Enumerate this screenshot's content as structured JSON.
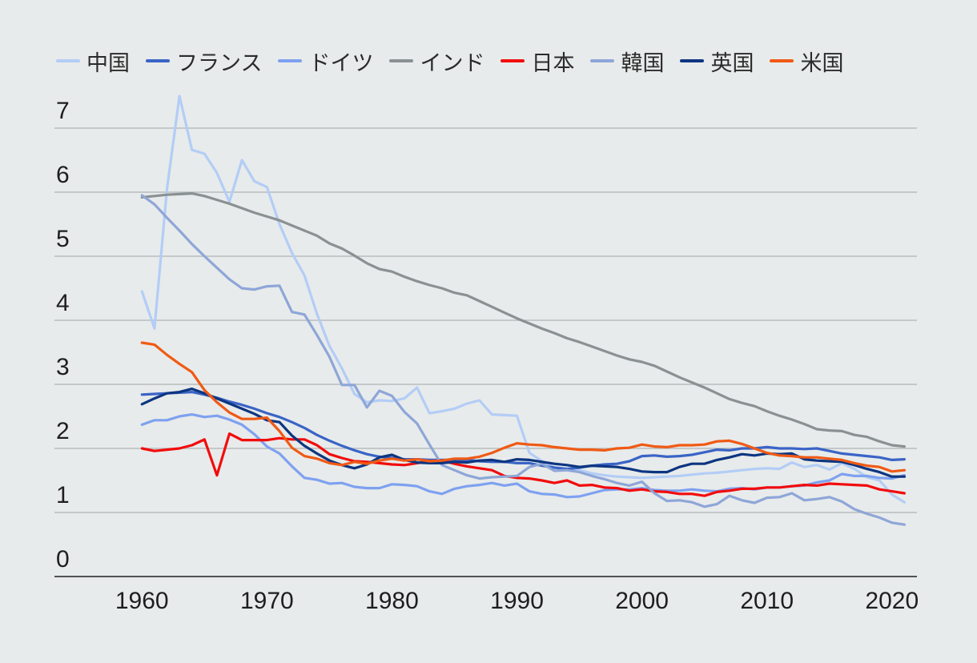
{
  "chart_data": {
    "type": "line",
    "title": "",
    "xlabel": "",
    "ylabel": "",
    "xlim": [
      1953,
      2022
    ],
    "ylim": [
      0,
      7
    ],
    "grid": true,
    "legend_position": "top",
    "x_ticks": [
      1960,
      1970,
      1980,
      1990,
      2000,
      2010,
      2020
    ],
    "y_ticks": [
      0,
      1,
      2,
      3,
      4,
      5,
      6,
      7
    ],
    "series": [
      {
        "name": "中国",
        "color": "#b3cdf6",
        "start_year": 1960,
        "values": [
          4.45,
          3.87,
          6.05,
          7.5,
          6.66,
          6.6,
          6.3,
          5.85,
          6.5,
          6.17,
          6.08,
          5.5,
          5.05,
          4.7,
          4.1,
          3.6,
          3.25,
          2.85,
          2.72,
          2.75,
          2.74,
          2.78,
          2.95,
          2.55,
          2.58,
          2.62,
          2.7,
          2.75,
          2.53,
          2.52,
          2.51,
          1.93,
          1.8,
          1.7,
          1.68,
          1.66,
          1.61,
          1.58,
          1.56,
          1.55,
          1.54,
          1.55,
          1.56,
          1.57,
          1.59,
          1.61,
          1.62,
          1.64,
          1.66,
          1.68,
          1.69,
          1.68,
          1.78,
          1.71,
          1.74,
          1.67,
          1.77,
          1.68,
          1.55,
          1.5,
          1.28,
          1.16
        ]
      },
      {
        "name": "フランス",
        "color": "#3a64c6",
        "start_year": 1960,
        "values": [
          2.84,
          2.85,
          2.86,
          2.87,
          2.88,
          2.84,
          2.79,
          2.73,
          2.68,
          2.62,
          2.55,
          2.49,
          2.41,
          2.32,
          2.21,
          2.12,
          2.04,
          1.97,
          1.91,
          1.87,
          1.85,
          1.83,
          1.83,
          1.82,
          1.82,
          1.82,
          1.82,
          1.8,
          1.79,
          1.79,
          1.77,
          1.77,
          1.73,
          1.7,
          1.68,
          1.7,
          1.73,
          1.75,
          1.76,
          1.8,
          1.88,
          1.89,
          1.87,
          1.88,
          1.9,
          1.94,
          1.98,
          1.97,
          2.0,
          2.0,
          2.02,
          2.0,
          2.0,
          1.99,
          2.0,
          1.96,
          1.92,
          1.9,
          1.88,
          1.86,
          1.82,
          1.83
        ]
      },
      {
        "name": "ドイツ",
        "color": "#7ea1f0",
        "start_year": 1960,
        "values": [
          2.37,
          2.44,
          2.44,
          2.5,
          2.53,
          2.49,
          2.51,
          2.45,
          2.37,
          2.22,
          2.03,
          1.92,
          1.72,
          1.54,
          1.51,
          1.45,
          1.46,
          1.4,
          1.38,
          1.38,
          1.44,
          1.43,
          1.41,
          1.33,
          1.29,
          1.37,
          1.41,
          1.43,
          1.46,
          1.42,
          1.45,
          1.33,
          1.29,
          1.28,
          1.24,
          1.25,
          1.3,
          1.35,
          1.36,
          1.36,
          1.38,
          1.35,
          1.34,
          1.34,
          1.36,
          1.34,
          1.33,
          1.37,
          1.38,
          1.36,
          1.39,
          1.39,
          1.41,
          1.42,
          1.47,
          1.5,
          1.6,
          1.57,
          1.57,
          1.54,
          1.53,
          1.58
        ]
      },
      {
        "name": "インド",
        "color": "#8a9192",
        "start_year": 1960,
        "values": [
          5.92,
          5.94,
          5.96,
          5.97,
          5.98,
          5.94,
          5.88,
          5.82,
          5.75,
          5.68,
          5.62,
          5.56,
          5.48,
          5.4,
          5.32,
          5.2,
          5.12,
          5.01,
          4.89,
          4.8,
          4.76,
          4.68,
          4.61,
          4.55,
          4.5,
          4.43,
          4.39,
          4.3,
          4.21,
          4.12,
          4.03,
          3.95,
          3.87,
          3.8,
          3.72,
          3.66,
          3.59,
          3.52,
          3.45,
          3.39,
          3.35,
          3.29,
          3.2,
          3.11,
          3.03,
          2.95,
          2.86,
          2.77,
          2.71,
          2.66,
          2.58,
          2.51,
          2.45,
          2.38,
          2.3,
          2.28,
          2.27,
          2.21,
          2.18,
          2.11,
          2.05,
          2.03
        ]
      },
      {
        "name": "日本",
        "color": "#f20c0c",
        "start_year": 1960,
        "values": [
          2.0,
          1.96,
          1.98,
          2.0,
          2.05,
          2.14,
          1.58,
          2.23,
          2.13,
          2.13,
          2.13,
          2.16,
          2.14,
          2.14,
          2.05,
          1.91,
          1.85,
          1.8,
          1.79,
          1.77,
          1.75,
          1.74,
          1.77,
          1.8,
          1.81,
          1.76,
          1.72,
          1.69,
          1.66,
          1.57,
          1.54,
          1.53,
          1.5,
          1.46,
          1.5,
          1.42,
          1.43,
          1.39,
          1.38,
          1.34,
          1.36,
          1.33,
          1.32,
          1.29,
          1.29,
          1.26,
          1.32,
          1.34,
          1.37,
          1.37,
          1.39,
          1.39,
          1.41,
          1.43,
          1.42,
          1.45,
          1.44,
          1.43,
          1.42,
          1.36,
          1.33,
          1.3
        ]
      },
      {
        "name": "韓国",
        "color": "#8ea6d8",
        "start_year": 1960,
        "values": [
          5.95,
          5.81,
          5.6,
          5.4,
          5.19,
          5.0,
          4.82,
          4.64,
          4.5,
          4.48,
          4.53,
          4.54,
          4.13,
          4.09,
          3.77,
          3.43,
          2.99,
          2.99,
          2.64,
          2.9,
          2.82,
          2.57,
          2.39,
          2.06,
          1.74,
          1.66,
          1.58,
          1.53,
          1.55,
          1.56,
          1.57,
          1.71,
          1.76,
          1.65,
          1.66,
          1.63,
          1.57,
          1.52,
          1.46,
          1.42,
          1.48,
          1.3,
          1.18,
          1.19,
          1.16,
          1.09,
          1.13,
          1.26,
          1.19,
          1.15,
          1.23,
          1.24,
          1.3,
          1.19,
          1.21,
          1.24,
          1.17,
          1.05,
          0.98,
          0.92,
          0.84,
          0.81
        ]
      },
      {
        "name": "英国",
        "color": "#0d3581",
        "start_year": 1960,
        "values": [
          2.69,
          2.78,
          2.86,
          2.88,
          2.93,
          2.86,
          2.78,
          2.7,
          2.62,
          2.54,
          2.44,
          2.41,
          2.2,
          2.04,
          1.92,
          1.81,
          1.74,
          1.69,
          1.75,
          1.86,
          1.9,
          1.82,
          1.78,
          1.77,
          1.77,
          1.79,
          1.78,
          1.81,
          1.82,
          1.79,
          1.83,
          1.82,
          1.79,
          1.76,
          1.74,
          1.71,
          1.73,
          1.72,
          1.71,
          1.68,
          1.64,
          1.63,
          1.63,
          1.71,
          1.76,
          1.76,
          1.82,
          1.86,
          1.91,
          1.89,
          1.92,
          1.91,
          1.92,
          1.83,
          1.81,
          1.8,
          1.79,
          1.74,
          1.68,
          1.63,
          1.56,
          1.56
        ]
      },
      {
        "name": "米国",
        "color": "#f05a14",
        "start_year": 1960,
        "values": [
          3.65,
          3.62,
          3.46,
          3.32,
          3.19,
          2.91,
          2.72,
          2.56,
          2.46,
          2.46,
          2.48,
          2.27,
          2.01,
          1.88,
          1.84,
          1.77,
          1.74,
          1.79,
          1.76,
          1.81,
          1.84,
          1.81,
          1.83,
          1.8,
          1.81,
          1.84,
          1.84,
          1.87,
          1.93,
          2.01,
          2.08,
          2.06,
          2.05,
          2.02,
          2.0,
          1.98,
          1.98,
          1.97,
          2.0,
          2.01,
          2.06,
          2.03,
          2.02,
          2.05,
          2.05,
          2.06,
          2.11,
          2.12,
          2.07,
          2.0,
          1.93,
          1.89,
          1.88,
          1.86,
          1.86,
          1.84,
          1.82,
          1.77,
          1.73,
          1.71,
          1.64,
          1.66
        ]
      }
    ]
  }
}
